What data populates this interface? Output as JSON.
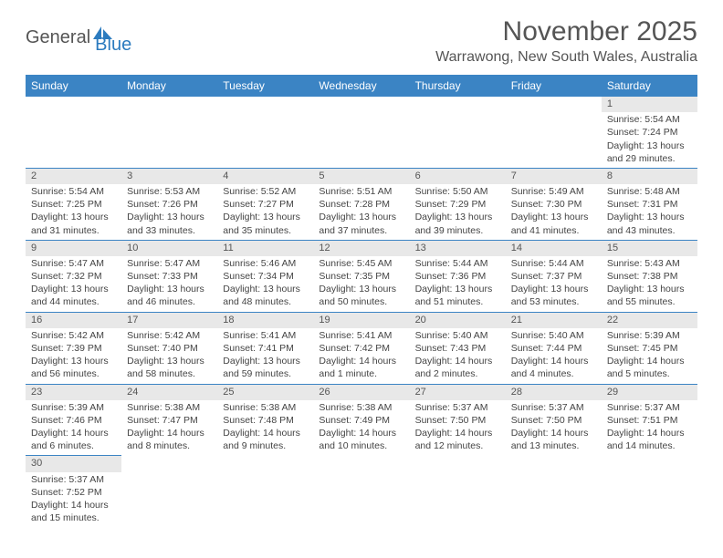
{
  "logo": {
    "part1": "General",
    "part2": "Blue"
  },
  "header": {
    "month_title": "November 2025",
    "location": "Warrawong, New South Wales, Australia"
  },
  "calendar": {
    "day_headers": [
      "Sunday",
      "Monday",
      "Tuesday",
      "Wednesday",
      "Thursday",
      "Friday",
      "Saturday"
    ],
    "header_bg": "#3b84c4",
    "header_fg": "#ffffff",
    "cell_border_color": "#3b84c4",
    "daynum_bg": "#e8e8e8",
    "weeks": [
      [
        null,
        null,
        null,
        null,
        null,
        null,
        {
          "n": "1",
          "sunrise": "5:54 AM",
          "sunset": "7:24 PM",
          "daylight": "13 hours and 29 minutes."
        }
      ],
      [
        {
          "n": "2",
          "sunrise": "5:54 AM",
          "sunset": "7:25 PM",
          "daylight": "13 hours and 31 minutes."
        },
        {
          "n": "3",
          "sunrise": "5:53 AM",
          "sunset": "7:26 PM",
          "daylight": "13 hours and 33 minutes."
        },
        {
          "n": "4",
          "sunrise": "5:52 AM",
          "sunset": "7:27 PM",
          "daylight": "13 hours and 35 minutes."
        },
        {
          "n": "5",
          "sunrise": "5:51 AM",
          "sunset": "7:28 PM",
          "daylight": "13 hours and 37 minutes."
        },
        {
          "n": "6",
          "sunrise": "5:50 AM",
          "sunset": "7:29 PM",
          "daylight": "13 hours and 39 minutes."
        },
        {
          "n": "7",
          "sunrise": "5:49 AM",
          "sunset": "7:30 PM",
          "daylight": "13 hours and 41 minutes."
        },
        {
          "n": "8",
          "sunrise": "5:48 AM",
          "sunset": "7:31 PM",
          "daylight": "13 hours and 43 minutes."
        }
      ],
      [
        {
          "n": "9",
          "sunrise": "5:47 AM",
          "sunset": "7:32 PM",
          "daylight": "13 hours and 44 minutes."
        },
        {
          "n": "10",
          "sunrise": "5:47 AM",
          "sunset": "7:33 PM",
          "daylight": "13 hours and 46 minutes."
        },
        {
          "n": "11",
          "sunrise": "5:46 AM",
          "sunset": "7:34 PM",
          "daylight": "13 hours and 48 minutes."
        },
        {
          "n": "12",
          "sunrise": "5:45 AM",
          "sunset": "7:35 PM",
          "daylight": "13 hours and 50 minutes."
        },
        {
          "n": "13",
          "sunrise": "5:44 AM",
          "sunset": "7:36 PM",
          "daylight": "13 hours and 51 minutes."
        },
        {
          "n": "14",
          "sunrise": "5:44 AM",
          "sunset": "7:37 PM",
          "daylight": "13 hours and 53 minutes."
        },
        {
          "n": "15",
          "sunrise": "5:43 AM",
          "sunset": "7:38 PM",
          "daylight": "13 hours and 55 minutes."
        }
      ],
      [
        {
          "n": "16",
          "sunrise": "5:42 AM",
          "sunset": "7:39 PM",
          "daylight": "13 hours and 56 minutes."
        },
        {
          "n": "17",
          "sunrise": "5:42 AM",
          "sunset": "7:40 PM",
          "daylight": "13 hours and 58 minutes."
        },
        {
          "n": "18",
          "sunrise": "5:41 AM",
          "sunset": "7:41 PM",
          "daylight": "13 hours and 59 minutes."
        },
        {
          "n": "19",
          "sunrise": "5:41 AM",
          "sunset": "7:42 PM",
          "daylight": "14 hours and 1 minute."
        },
        {
          "n": "20",
          "sunrise": "5:40 AM",
          "sunset": "7:43 PM",
          "daylight": "14 hours and 2 minutes."
        },
        {
          "n": "21",
          "sunrise": "5:40 AM",
          "sunset": "7:44 PM",
          "daylight": "14 hours and 4 minutes."
        },
        {
          "n": "22",
          "sunrise": "5:39 AM",
          "sunset": "7:45 PM",
          "daylight": "14 hours and 5 minutes."
        }
      ],
      [
        {
          "n": "23",
          "sunrise": "5:39 AM",
          "sunset": "7:46 PM",
          "daylight": "14 hours and 6 minutes."
        },
        {
          "n": "24",
          "sunrise": "5:38 AM",
          "sunset": "7:47 PM",
          "daylight": "14 hours and 8 minutes."
        },
        {
          "n": "25",
          "sunrise": "5:38 AM",
          "sunset": "7:48 PM",
          "daylight": "14 hours and 9 minutes."
        },
        {
          "n": "26",
          "sunrise": "5:38 AM",
          "sunset": "7:49 PM",
          "daylight": "14 hours and 10 minutes."
        },
        {
          "n": "27",
          "sunrise": "5:37 AM",
          "sunset": "7:50 PM",
          "daylight": "14 hours and 12 minutes."
        },
        {
          "n": "28",
          "sunrise": "5:37 AM",
          "sunset": "7:50 PM",
          "daylight": "14 hours and 13 minutes."
        },
        {
          "n": "29",
          "sunrise": "5:37 AM",
          "sunset": "7:51 PM",
          "daylight": "14 hours and 14 minutes."
        }
      ],
      [
        {
          "n": "30",
          "sunrise": "5:37 AM",
          "sunset": "7:52 PM",
          "daylight": "14 hours and 15 minutes."
        },
        null,
        null,
        null,
        null,
        null,
        null
      ]
    ],
    "labels": {
      "sunrise": "Sunrise:",
      "sunset": "Sunset:",
      "daylight": "Daylight:"
    }
  }
}
